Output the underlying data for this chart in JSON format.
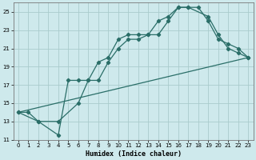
{
  "xlabel": "Humidex (Indice chaleur)",
  "background_color": "#cee9ec",
  "grid_color": "#aacccc",
  "line_color": "#2a6e68",
  "ylim": [
    11,
    26
  ],
  "xlim": [
    -0.5,
    23.5
  ],
  "yticks": [
    11,
    13,
    15,
    17,
    19,
    21,
    23,
    25
  ],
  "xticks": [
    0,
    1,
    2,
    3,
    4,
    5,
    6,
    7,
    8,
    9,
    10,
    11,
    12,
    13,
    14,
    15,
    16,
    17,
    18,
    19,
    20,
    21,
    22,
    23
  ],
  "series1_x": [
    0,
    1,
    2,
    4,
    5,
    6,
    7,
    8,
    9,
    10,
    11,
    12,
    13,
    14,
    15,
    16,
    17,
    19,
    20,
    21,
    22,
    23
  ],
  "series1_y": [
    14,
    14,
    13,
    11.5,
    17.5,
    17.5,
    17.5,
    19.5,
    20,
    22,
    22.5,
    22.5,
    22.5,
    24,
    24.5,
    25.5,
    25.5,
    24.5,
    22.5,
    21,
    20.5,
    20
  ],
  "series2_x": [
    0,
    2,
    4,
    6,
    7,
    8,
    9,
    10,
    11,
    12,
    13,
    14,
    15,
    16,
    17,
    18,
    19,
    20,
    21,
    22,
    23
  ],
  "series2_y": [
    14,
    13,
    13,
    15,
    17.5,
    17.5,
    19.5,
    21,
    22,
    22,
    22.5,
    22.5,
    24,
    25.5,
    25.5,
    25.5,
    24,
    22,
    21.5,
    21,
    20
  ],
  "series3_x": [
    0,
    23
  ],
  "series3_y": [
    14,
    20
  ]
}
